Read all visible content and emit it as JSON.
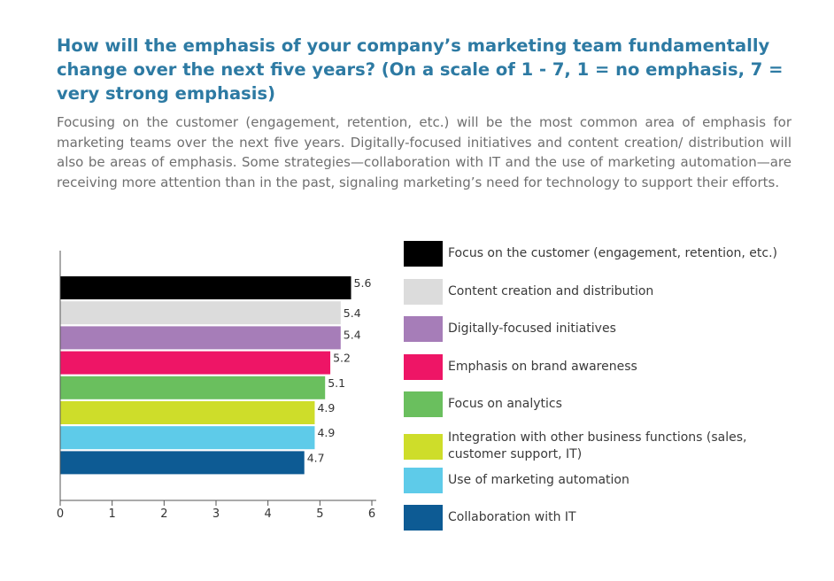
{
  "title": "How will the emphasis of your company’s marketing team fundamentally change over the next five years? (On a scale of 1 - 7,  1 = no emphasis, 7 = very strong emphasis)",
  "description": "Focusing on the customer (engagement, retention, etc.) will be the most common area of emphasis for marketing teams over the next five years. Digitally-focused initiatives and content creation/ distribution will also be areas of emphasis. Some strategies—collaboration with IT and the use of marketing automation—are receiving more attention than in the past, signaling marketing’s need for technology to support their efforts.",
  "chart_data": {
    "type": "bar",
    "orientation": "horizontal",
    "categories": [
      "Focus on the customer (engagement, retention, etc.)",
      "Content creation and distribution",
      "Digitally-focused initiatives",
      "Emphasis on brand awareness",
      "Focus on analytics",
      "Integration with other business functions (sales, customer support, IT)",
      "Use of marketing automation",
      "Collaboration with IT"
    ],
    "values": [
      5.6,
      5.4,
      5.4,
      5.2,
      5.1,
      4.9,
      4.9,
      4.7
    ],
    "value_labels": [
      "5.6",
      "5.4",
      "5.4",
      "5.2",
      "5.1",
      "4.9",
      "4.9",
      "4.7"
    ],
    "colors": [
      "#000000",
      "#dcdcdc",
      "#a67db8",
      "#ee1566",
      "#6abf5e",
      "#cedd2a",
      "#5ecbe9",
      "#0d5b94"
    ],
    "xlim": [
      0,
      6
    ],
    "xticks": [
      "0",
      "1",
      "2",
      "3",
      "4",
      "5",
      "6"
    ],
    "grid": false,
    "legend_position": "right"
  }
}
